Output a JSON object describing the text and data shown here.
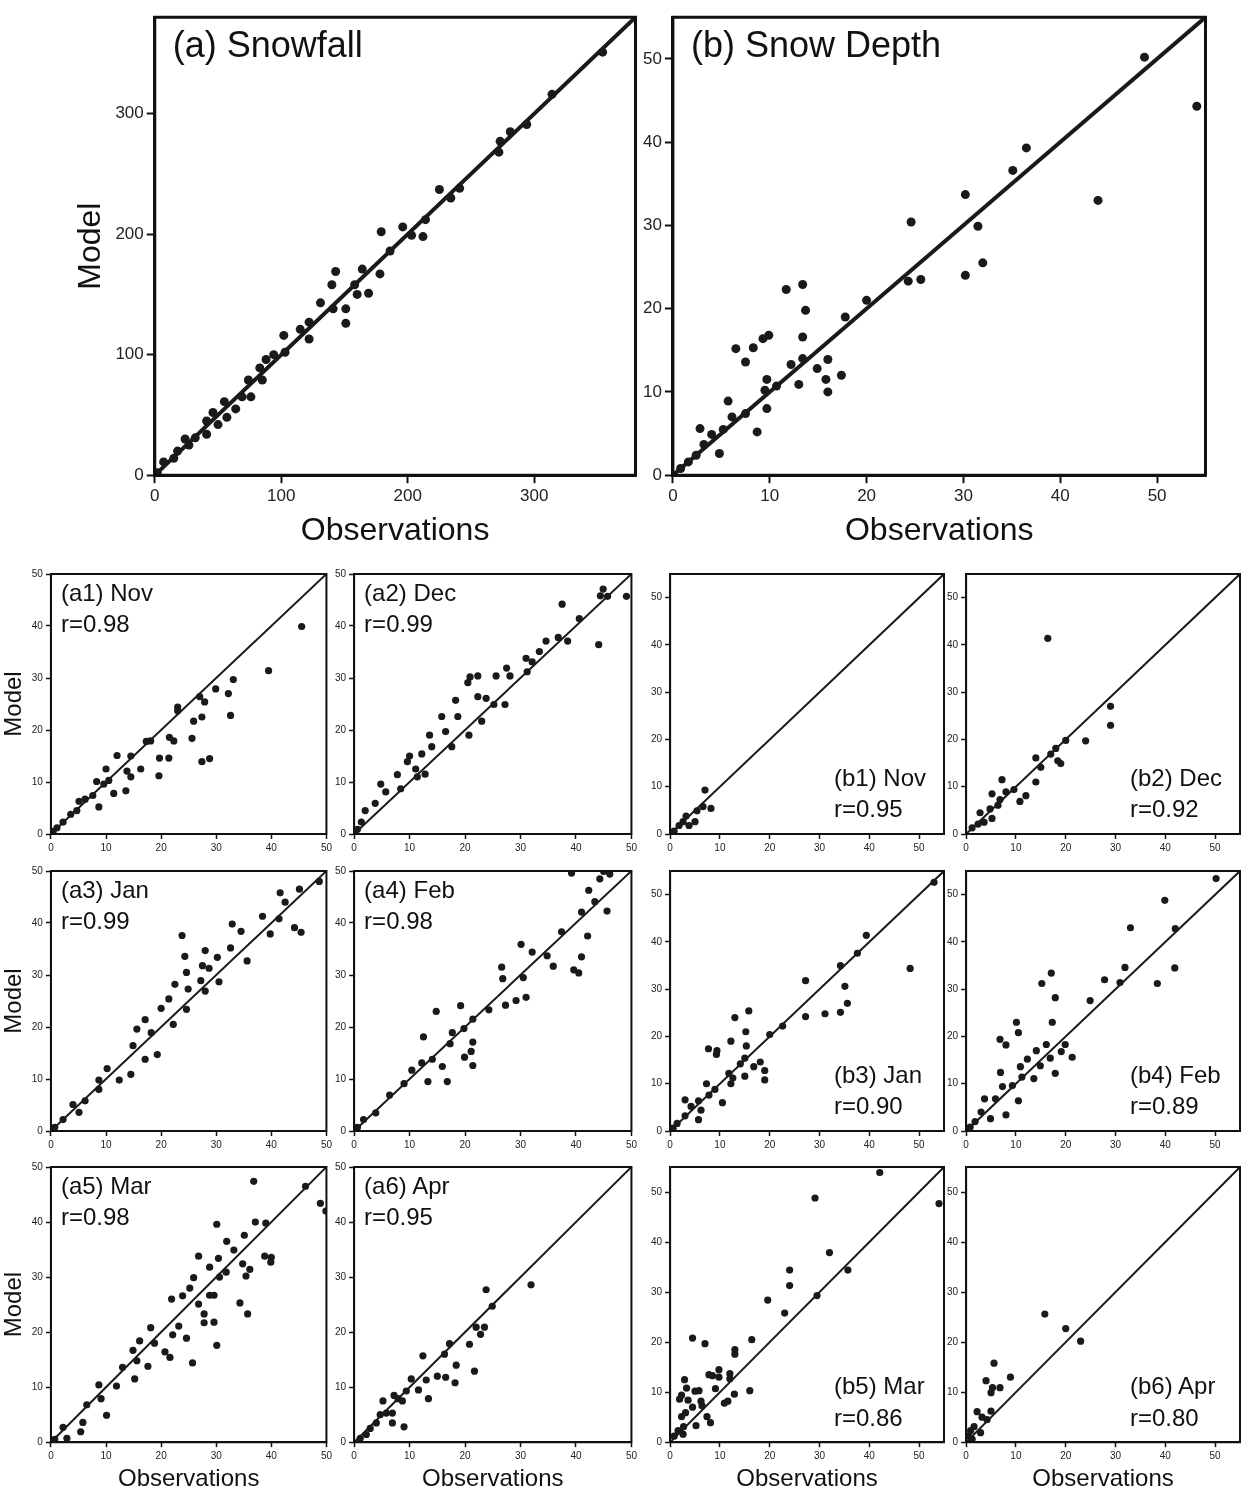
{
  "chart_data": [
    {
      "type": "scatter",
      "title": "(a) Snowfall",
      "xlabel": "Observations",
      "ylabel": "Model",
      "xlim": [
        0,
        380
      ],
      "ylim": [
        0,
        380
      ],
      "xticks": [
        0,
        100,
        200,
        300
      ],
      "yticks": [
        0,
        100,
        200,
        300
      ],
      "marker": "circle",
      "series": [
        {
          "type": "scatter",
          "color": "#1a1a1a",
          "x": [
            354,
            314,
            294,
            281,
            273,
            272,
            241,
            225,
            234,
            196,
            212,
            214,
            203,
            179,
            178,
            186,
            164,
            143,
            140,
            151,
            151,
            131,
            141,
            169,
            160,
            158,
            122,
            122,
            115,
            102,
            103,
            94,
            88,
            85,
            83,
            74,
            76,
            64,
            55,
            57,
            50,
            41,
            41,
            27,
            24,
            15,
            7,
            2,
            46,
            69,
            32,
            18
          ],
          "values": [
            351,
            316,
            291,
            285,
            277,
            268,
            238,
            237,
            230,
            206,
            198,
            212,
            199,
            202,
            167,
            186,
            171,
            169,
            158,
            138,
            126,
            143,
            138,
            151,
            150,
            158,
            127,
            113,
            121,
            116,
            102,
            100,
            96,
            79,
            89,
            79,
            65,
            55,
            61,
            48,
            42,
            45,
            34,
            25,
            30,
            14,
            11,
            2,
            52,
            65,
            31,
            20
          ]
        },
        {
          "type": "line",
          "color": "#1a1a1a",
          "marker": "none",
          "x": [
            0,
            380
          ],
          "values": [
            0,
            380
          ]
        }
      ]
    },
    {
      "type": "scatter",
      "title": "(b) Snow Depth",
      "xlabel": "Observations",
      "xlim": [
        0,
        55
      ],
      "ylim": [
        0,
        55
      ],
      "xticks": [
        0,
        10,
        20,
        30,
        40,
        50
      ],
      "yticks": [
        0,
        10,
        20,
        30,
        40,
        50
      ],
      "marker": "circle",
      "series": [
        {
          "type": "scatter",
          "color": "#1a1a1a",
          "x": [
            48.7,
            54.1,
            36.5,
            35.1,
            30.2,
            43.9,
            24.6,
            31.5,
            32.0,
            30.2,
            24.3,
            25.6,
            20.0,
            17.8,
            11.7,
            13.4,
            13.7,
            9.9,
            9.3,
            8.3,
            6.5,
            7.5,
            13.4,
            13.4,
            12.2,
            16.0,
            14.9,
            17.4,
            15.8,
            16.0,
            13.0,
            9.7,
            10.7,
            9.5,
            9.7,
            5.7,
            8.7,
            7.5,
            6.1,
            2.8,
            4.8,
            4.0,
            3.2,
            2.4,
            1.6,
            0.8,
            5.2
          ],
          "values": [
            50.2,
            44.3,
            39.3,
            36.6,
            33.7,
            33.0,
            30.4,
            29.9,
            25.5,
            24.0,
            23.3,
            23.5,
            21.0,
            19.0,
            22.3,
            22.9,
            19.8,
            16.8,
            16.4,
            15.3,
            15.2,
            13.6,
            16.6,
            14.0,
            13.3,
            13.9,
            12.8,
            12.0,
            11.5,
            10.0,
            10.9,
            11.5,
            10.7,
            10.2,
            8.0,
            8.9,
            5.2,
            7.4,
            7.0,
            5.6,
            2.6,
            4.9,
            3.7,
            2.4,
            1.6,
            0.8,
            5.5
          ]
        },
        {
          "type": "line",
          "color": "#1a1a1a",
          "marker": "none",
          "x": [
            0,
            55
          ],
          "values": [
            0,
            55
          ]
        }
      ]
    },
    {
      "type": "scatter",
      "ylabel": "Model",
      "annotations": [
        "(a1) Nov",
        "r=0.98"
      ],
      "xlim": [
        0,
        50
      ],
      "ylim": [
        0,
        50
      ],
      "xticks": [
        0,
        10,
        20,
        30,
        40,
        50
      ],
      "yticks": [
        0,
        10,
        20,
        30,
        40,
        50
      ],
      "marker": "circle",
      "series": [
        {
          "type": "scatter",
          "color": "#1a1a1a",
          "x": [
            45.5,
            39.5,
            33.1,
            29.9,
            32.2,
            27.0,
            27.9,
            23.0,
            23.0,
            32.6,
            25.9,
            27.4,
            25.6,
            22.3,
            21.5,
            27.4,
            28.8,
            18.1,
            17.3,
            19.7,
            21.4,
            19.6,
            12.0,
            14.5,
            10.0,
            13.8,
            16.3,
            14.5,
            13.6,
            11.4,
            9.6,
            8.3,
            8.7,
            7.6,
            6.2,
            4.7,
            3.6,
            2.2,
            1.1,
            0.4,
            5.1,
            10.5
          ],
          "values": [
            39.9,
            31.4,
            29.7,
            27.9,
            27.0,
            26.4,
            25.4,
            24.4,
            23.7,
            22.8,
            21.7,
            22.5,
            18.4,
            17.9,
            18.6,
            13.9,
            14.5,
            17.9,
            17.8,
            14.6,
            14.6,
            11.2,
            15.1,
            15.0,
            12.5,
            12.1,
            12.5,
            11.0,
            8.3,
            7.8,
            9.6,
            10.1,
            5.2,
            7.4,
            6.7,
            4.5,
            3.8,
            2.3,
            1.2,
            0.5,
            6.3,
            10.3
          ]
        },
        {
          "type": "line",
          "color": "#1a1a1a",
          "marker": "none",
          "x": [
            0,
            50
          ],
          "values": [
            0,
            50
          ]
        }
      ]
    },
    {
      "type": "scatter",
      "annotations": [
        "(a2) Dec",
        "r=0.99"
      ],
      "xlim": [
        0,
        50
      ],
      "ylim": [
        0,
        50
      ],
      "xticks": [
        0,
        10,
        20,
        30,
        40,
        50
      ],
      "yticks": [
        0,
        10,
        20,
        30,
        40,
        50
      ],
      "marker": "circle",
      "series": [
        {
          "type": "scatter",
          "color": "#1a1a1a",
          "x": [
            44.9,
            44.4,
            45.7,
            49.1,
            37.5,
            44.1,
            40.6,
            38.5,
            36.8,
            34.6,
            33.4,
            31.0,
            32.1,
            31.2,
            28.1,
            27.5,
            25.6,
            22.3,
            20.9,
            20.5,
            27.2,
            25.2,
            23.8,
            22.3,
            23.0,
            20.7,
            18.3,
            18.7,
            17.6,
            15.8,
            16.5,
            13.6,
            14.0,
            12.2,
            10.0,
            11.1,
            9.6,
            12.8,
            11.4,
            7.8,
            8.4,
            4.8,
            5.7,
            3.8,
            2.0,
            1.3,
            0.6
          ],
          "values": [
            47.1,
            45.8,
            45.7,
            45.7,
            44.2,
            36.4,
            41.4,
            37.1,
            37.8,
            37.1,
            35.1,
            33.8,
            33.1,
            31.2,
            30.4,
            31.9,
            30.4,
            30.4,
            30.2,
            29.1,
            24.9,
            24.9,
            26.1,
            26.4,
            21.7,
            19.0,
            25.7,
            22.6,
            16.8,
            22.6,
            19.7,
            19.0,
            16.8,
            15.4,
            15.0,
            12.5,
            13.9,
            11.5,
            11.0,
            11.4,
            8.7,
            9.6,
            8.1,
            5.9,
            4.5,
            2.3,
            0.9
          ]
        },
        {
          "type": "line",
          "color": "#1a1a1a",
          "marker": "none",
          "x": [
            0,
            50
          ],
          "values": [
            0,
            50
          ]
        }
      ]
    },
    {
      "type": "scatter",
      "annotations": [
        "(b1) Nov",
        "r=0.95"
      ],
      "xlim": [
        0,
        55
      ],
      "ylim": [
        0,
        55
      ],
      "xticks": [
        0,
        10,
        20,
        30,
        40,
        50
      ],
      "yticks": [
        0,
        10,
        20,
        30,
        40,
        50
      ],
      "marker": "circle",
      "series": [
        {
          "type": "scatter",
          "color": "#1a1a1a",
          "x": [
            7.0,
            8.2,
            6.6,
            5.4,
            5.0,
            3.2,
            2.6,
            1.8,
            0.8,
            3.8
          ],
          "values": [
            9.3,
            5.4,
            5.8,
            4.9,
            2.6,
            3.8,
            2.6,
            1.8,
            0.6,
            1.8
          ]
        },
        {
          "type": "line",
          "color": "#1a1a1a",
          "marker": "none",
          "x": [
            0,
            55
          ],
          "values": [
            0,
            55
          ]
        }
      ]
    },
    {
      "type": "scatter",
      "annotations": [
        "(b2) Dec",
        "r=0.92"
      ],
      "xlim": [
        0,
        55
      ],
      "ylim": [
        0,
        55
      ],
      "xticks": [
        0,
        10,
        20,
        30,
        40,
        50
      ],
      "yticks": [
        0,
        10,
        20,
        30,
        40,
        50
      ],
      "marker": "circle",
      "series": [
        {
          "type": "scatter",
          "color": "#1a1a1a",
          "x": [
            16.4,
            29.0,
            29.0,
            24.0,
            20.0,
            18.0,
            17.0,
            18.4,
            19.0,
            14.0,
            15.0,
            14.0,
            12.0,
            10.8,
            7.2,
            9.6,
            8.0,
            5.2,
            6.4,
            4.8,
            2.8,
            5.2,
            2.4,
            1.2,
            3.6,
            6.8
          ],
          "values": [
            41.4,
            27.0,
            23.0,
            19.7,
            19.8,
            18.1,
            16.9,
            15.5,
            14.9,
            16.1,
            14.1,
            11.0,
            8.1,
            6.9,
            11.5,
            9.4,
            8.9,
            8.5,
            6.1,
            5.3,
            4.5,
            3.3,
            2.1,
            1.3,
            2.5,
            7.3
          ]
        },
        {
          "type": "line",
          "color": "#1a1a1a",
          "marker": "none",
          "x": [
            0,
            55
          ],
          "values": [
            0,
            55
          ]
        }
      ]
    },
    {
      "type": "scatter",
      "ylabel": "Model",
      "annotations": [
        "(a3) Jan",
        "r=0.99"
      ],
      "xlim": [
        0,
        50
      ],
      "ylim": [
        0,
        50
      ],
      "xticks": [
        0,
        10,
        20,
        30,
        40,
        50
      ],
      "yticks": [
        0,
        10,
        20,
        30,
        40,
        50
      ],
      "marker": "circle",
      "series": [
        {
          "type": "scatter",
          "color": "#1a1a1a",
          "x": [
            48.7,
            45.1,
            41.6,
            42.5,
            44.2,
            45.4,
            38.4,
            39.8,
            41.4,
            32.9,
            34.5,
            35.6,
            32.6,
            30.2,
            28.0,
            28.7,
            27.5,
            30.5,
            28.0,
            27.2,
            23.8,
            24.3,
            24.6,
            24.9,
            24.6,
            22.5,
            21.4,
            22.2,
            20.0,
            19.3,
            18.2,
            17.1,
            15.6,
            14.9,
            17.1,
            14.5,
            12.4,
            10.2,
            8.7,
            8.7,
            6.2,
            4.0,
            5.1,
            2.2,
            0.7
          ],
          "values": [
            48.0,
            46.5,
            45.8,
            44.0,
            39.1,
            38.2,
            41.3,
            37.9,
            40.8,
            39.8,
            38.4,
            32.7,
            35.2,
            33.4,
            34.7,
            31.3,
            31.8,
            28.7,
            26.9,
            28.9,
            37.6,
            33.6,
            30.5,
            27.3,
            23.4,
            28.2,
            25.4,
            20.5,
            23.6,
            14.7,
            18.9,
            21.4,
            19.6,
            16.4,
            13.8,
            10.9,
            9.8,
            12.0,
            9.8,
            8.0,
            5.8,
            5.1,
            3.6,
            2.2,
            0.7
          ]
        },
        {
          "type": "line",
          "color": "#1a1a1a",
          "marker": "none",
          "x": [
            0,
            50
          ],
          "values": [
            0,
            50
          ]
        }
      ]
    },
    {
      "type": "scatter",
      "annotations": [
        "(a4) Feb",
        "r=0.98"
      ],
      "xlim": [
        0,
        50
      ],
      "ylim": [
        0,
        50
      ],
      "xticks": [
        0,
        10,
        20,
        30,
        40,
        50
      ],
      "yticks": [
        0,
        10,
        20,
        30,
        40,
        50
      ],
      "marker": "circle",
      "series": [
        {
          "type": "scatter",
          "color": "#1a1a1a",
          "x": [
            39.2,
            45.0,
            46.1,
            44.3,
            42.3,
            45.6,
            43.4,
            41.0,
            42.1,
            41.0,
            39.6,
            40.5,
            37.4,
            34.8,
            35.9,
            32.1,
            30.1,
            30.5,
            31.0,
            29.2,
            26.6,
            26.8,
            27.3,
            24.3,
            21.4,
            21.4,
            21.4,
            21.1,
            19.2,
            19.8,
            19.9,
            17.7,
            14.8,
            17.3,
            16.8,
            15.9,
            14.1,
            12.5,
            12.2,
            13.3,
            10.4,
            9.0,
            6.4,
            3.9,
            1.7,
            0.6
          ],
          "values": [
            49.6,
            49.9,
            49.4,
            48.5,
            46.3,
            42.3,
            44.1,
            42.1,
            37.5,
            33.5,
            31.0,
            30.4,
            38.3,
            33.7,
            31.7,
            34.4,
            35.9,
            29.5,
            25.7,
            25.1,
            31.5,
            29.3,
            24.2,
            23.3,
            21.5,
            17.1,
            12.6,
            15.3,
            24.1,
            19.7,
            14.2,
            18.9,
            23.0,
            16.8,
            9.5,
            12.4,
            13.8,
            18.1,
            13.1,
            9.5,
            11.7,
            9.1,
            6.9,
            3.5,
            2.2,
            0.7
          ]
        },
        {
          "type": "line",
          "color": "#1a1a1a",
          "marker": "none",
          "x": [
            0,
            50
          ],
          "values": [
            0,
            50
          ]
        }
      ]
    },
    {
      "type": "scatter",
      "annotations": [
        "(b3) Jan",
        "r=0.90"
      ],
      "xlim": [
        0,
        55
      ],
      "ylim": [
        0,
        55
      ],
      "xticks": [
        0,
        10,
        20,
        30,
        40,
        50
      ],
      "yticks": [
        0,
        10,
        20,
        30,
        40,
        50
      ],
      "marker": "circle",
      "series": [
        {
          "type": "scatter",
          "color": "#1a1a1a",
          "x": [
            53.0,
            39.4,
            37.6,
            34.2,
            48.2,
            35.1,
            35.6,
            34.2,
            31.1,
            27.2,
            27.2,
            22.6,
            20.0,
            15.8,
            13.0,
            15.2,
            12.2,
            15.3,
            7.7,
            9.4,
            9.3,
            15.0,
            14.1,
            18.1,
            16.8,
            15.0,
            19.0,
            19.0,
            11.8,
            12.6,
            12.2,
            10.5,
            7.3,
            9.0,
            7.8,
            5.7,
            3.0,
            4.2,
            5.7,
            3.0,
            1.4,
            0.6,
            6.2
          ],
          "values": [
            52.6,
            41.4,
            37.6,
            35.0,
            34.4,
            30.6,
            27.0,
            25.1,
            24.8,
            31.8,
            24.2,
            22.2,
            20.4,
            25.4,
            24.0,
            21.0,
            19.0,
            18.0,
            17.4,
            17.0,
            16.2,
            15.4,
            14.2,
            14.6,
            13.6,
            11.6,
            12.8,
            10.8,
            12.2,
            11.2,
            10.0,
            6.0,
            10.0,
            8.8,
            7.6,
            6.4,
            6.6,
            5.2,
            2.4,
            3.2,
            1.6,
            0.6,
            4.4
          ]
        },
        {
          "type": "line",
          "color": "#1a1a1a",
          "marker": "none",
          "x": [
            0,
            55
          ],
          "values": [
            0,
            55
          ]
        }
      ]
    },
    {
      "type": "scatter",
      "annotations": [
        "(b4) Feb",
        "r=0.89"
      ],
      "xlim": [
        0,
        55
      ],
      "ylim": [
        0,
        55
      ],
      "xticks": [
        0,
        10,
        20,
        30,
        40,
        50
      ],
      "yticks": [
        0,
        10,
        20,
        30,
        40,
        50
      ],
      "marker": "circle",
      "series": [
        {
          "type": "scatter",
          "color": "#1a1a1a",
          "x": [
            50.2,
            39.9,
            33.0,
            42.0,
            41.9,
            31.9,
            38.4,
            30.9,
            27.8,
            24.9,
            17.1,
            15.2,
            17.9,
            17.3,
            10.1,
            10.5,
            6.8,
            8.0,
            16.1,
            19.9,
            19.1,
            16.9,
            21.3,
            17.9,
            14.1,
            12.3,
            14.9,
            13.6,
            10.9,
            11.2,
            6.9,
            10.5,
            8.0,
            9.3,
            7.3,
            5.9,
            3.7,
            4.9,
            3.0,
            1.8,
            0.8
          ],
          "values": [
            53.4,
            48.8,
            43.0,
            42.8,
            34.5,
            34.6,
            31.2,
            31.4,
            32.0,
            27.6,
            33.4,
            31.2,
            28.2,
            23.0,
            23.0,
            20.8,
            19.4,
            18.2,
            18.3,
            18.3,
            16.8,
            15.4,
            15.6,
            12.2,
            17.0,
            15.2,
            13.8,
            11.1,
            13.6,
            11.4,
            12.4,
            6.4,
            3.4,
            9.6,
            9.4,
            6.8,
            6.8,
            2.6,
            4.0,
            2.0,
            0.8
          ]
        },
        {
          "type": "line",
          "color": "#1a1a1a",
          "marker": "none",
          "x": [
            0,
            55
          ],
          "values": [
            0,
            55
          ]
        }
      ]
    },
    {
      "type": "scatter",
      "xlabel": "Observations",
      "ylabel": "Model",
      "annotations": [
        "(a5) Mar",
        "r=0.98"
      ],
      "xlim": [
        0,
        50
      ],
      "ylim": [
        0,
        50
      ],
      "xticks": [
        0,
        10,
        20,
        30,
        40,
        50
      ],
      "yticks": [
        0,
        10,
        20,
        30,
        40,
        50
      ],
      "marker": "circle",
      "series": [
        {
          "type": "scatter",
          "color": "#1a1a1a",
          "x": [
            36.8,
            46.2,
            48.9,
            49.9,
            37.1,
            39.0,
            30.1,
            31.9,
            33.2,
            35.1,
            38.8,
            40.0,
            39.9,
            34.8,
            36.1,
            35.4,
            26.8,
            28.8,
            30.4,
            31.8,
            30.6,
            25.9,
            25.2,
            23.9,
            21.9,
            26.8,
            28.8,
            29.6,
            34.3,
            35.7,
            27.8,
            29.6,
            27.8,
            30.1,
            25.7,
            24.6,
            23.2,
            22.1,
            21.6,
            20.7,
            18.1,
            18.8,
            17.6,
            16.1,
            14.9,
            15.6,
            15.2,
            13.0,
            11.9,
            8.7,
            9.1,
            10.1,
            6.5,
            5.8,
            5.4,
            2.2,
            2.9,
            0.7
          ],
          "values": [
            47.4,
            46.5,
            43.4,
            42.0,
            40.0,
            39.8,
            39.6,
            36.5,
            34.9,
            37.6,
            33.8,
            33.6,
            32.7,
            32.4,
            31.4,
            30.2,
            33.8,
            31.8,
            33.4,
            30.9,
            30.0,
            29.9,
            28.0,
            26.6,
            26.0,
            25.1,
            26.7,
            26.7,
            25.3,
            23.3,
            23.3,
            21.8,
            21.7,
            17.6,
            14.4,
            18.9,
            21.1,
            19.5,
            15.4,
            16.4,
            20.8,
            18.0,
            13.8,
            18.4,
            16.7,
            14.8,
            11.5,
            13.6,
            10.2,
            10.4,
            7.9,
            4.9,
            6.8,
            3.6,
            1.9,
            2.7,
            0.7,
            0.5
          ]
        },
        {
          "type": "line",
          "color": "#1a1a1a",
          "marker": "none",
          "x": [
            0,
            50
          ],
          "values": [
            0,
            50
          ]
        }
      ]
    },
    {
      "type": "scatter",
      "xlabel": "Observations",
      "annotations": [
        "(a6) Apr",
        "r=0.95"
      ],
      "xlim": [
        0,
        50
      ],
      "ylim": [
        0,
        50
      ],
      "xticks": [
        0,
        10,
        20,
        30,
        40,
        50
      ],
      "yticks": [
        0,
        10,
        20,
        30,
        40,
        50
      ],
      "marker": "circle",
      "series": [
        {
          "type": "scatter",
          "color": "#1a1a1a",
          "x": [
            31.9,
            23.8,
            24.9,
            22.0,
            23.5,
            22.8,
            20.8,
            21.7,
            17.2,
            18.4,
            18.2,
            16.3,
            15.0,
            16.5,
            12.4,
            13.0,
            13.4,
            11.6,
            10.3,
            9.4,
            9.0,
            7.9,
            7.2,
            6.9,
            6.9,
            5.2,
            4.7,
            4.0,
            2.9,
            2.2,
            1.1,
            5.8,
            8.7
          ],
          "values": [
            28.6,
            27.7,
            24.7,
            20.9,
            20.9,
            19.6,
            17.8,
            12.9,
            17.9,
            14.0,
            10.8,
            16.0,
            12.0,
            11.8,
            15.7,
            11.3,
            7.9,
            9.5,
            11.5,
            9.3,
            2.8,
            7.9,
            8.5,
            5.3,
            3.5,
            7.5,
            5.0,
            3.5,
            2.5,
            1.4,
            0.7,
            5.3,
            7.5
          ]
        },
        {
          "type": "line",
          "color": "#1a1a1a",
          "marker": "none",
          "x": [
            0,
            50
          ],
          "values": [
            0,
            50
          ]
        }
      ]
    },
    {
      "type": "scatter",
      "xlabel": "Observations",
      "annotations": [
        "(b5) Mar",
        "r=0.86"
      ],
      "xlim": [
        0,
        55
      ],
      "ylim": [
        0,
        55
      ],
      "xticks": [
        0,
        10,
        20,
        30,
        40,
        50
      ],
      "yticks": [
        0,
        10,
        20,
        30,
        40,
        50
      ],
      "marker": "circle",
      "series": [
        {
          "type": "scatter",
          "color": "#1a1a1a",
          "x": [
            42.1,
            54.0,
            29.1,
            32.0,
            35.7,
            24.0,
            24.0,
            29.5,
            19.6,
            23.0,
            16.4,
            13.0,
            13.0,
            4.5,
            7.0,
            16.0,
            9.8,
            9.8,
            7.8,
            8.5,
            12.0,
            12.0,
            9.1,
            12.9,
            10.9,
            11.6,
            7.4,
            8.1,
            2.9,
            3.3,
            2.3,
            1.9,
            3.6,
            5.0,
            5.8,
            6.2,
            6.4,
            4.5,
            5.2,
            3.1,
            2.3,
            2.7,
            1.6,
            0.8,
            2.6
          ],
          "values": [
            53.9,
            47.7,
            48.8,
            37.9,
            34.4,
            34.4,
            31.3,
            29.3,
            28.4,
            25.8,
            20.5,
            18.5,
            17.6,
            20.8,
            19.7,
            10.3,
            14.5,
            13.0,
            13.5,
            13.3,
            13.7,
            12.7,
            10.7,
            9.6,
            7.8,
            8.2,
            5.1,
            3.9,
            12.5,
            10.8,
            9.4,
            8.6,
            8.4,
            10.2,
            10.3,
            8.2,
            7.3,
            7.0,
            3.3,
            5.9,
            5.1,
            3.1,
            2.3,
            1.2,
            1.6
          ]
        },
        {
          "type": "line",
          "color": "#1a1a1a",
          "marker": "none",
          "x": [
            0,
            55
          ],
          "values": [
            0,
            55
          ]
        }
      ]
    },
    {
      "type": "scatter",
      "xlabel": "Observations",
      "annotations": [
        "(b6) Apr",
        "r=0.80"
      ],
      "xlim": [
        0,
        55
      ],
      "ylim": [
        0,
        55
      ],
      "xticks": [
        0,
        10,
        20,
        30,
        40,
        50
      ],
      "yticks": [
        0,
        10,
        20,
        30,
        40,
        50
      ],
      "marker": "circle",
      "series": [
        {
          "type": "scatter",
          "color": "#1a1a1a",
          "x": [
            23.0,
            20.0,
            15.8,
            5.6,
            4.0,
            8.9,
            6.8,
            5.3,
            5.0,
            5.0,
            2.2,
            3.2,
            4.2,
            2.9,
            1.6,
            0.9,
            0.5,
            1.2
          ],
          "values": [
            20.2,
            22.7,
            25.6,
            15.8,
            12.3,
            13.0,
            10.9,
            10.9,
            9.9,
            6.2,
            6.1,
            5.0,
            4.5,
            1.9,
            3.1,
            2.3,
            1.2,
            0.6
          ]
        },
        {
          "type": "line",
          "color": "#1a1a1a",
          "marker": "none",
          "x": [
            0,
            55
          ],
          "values": [
            0,
            55
          ]
        }
      ]
    }
  ]
}
